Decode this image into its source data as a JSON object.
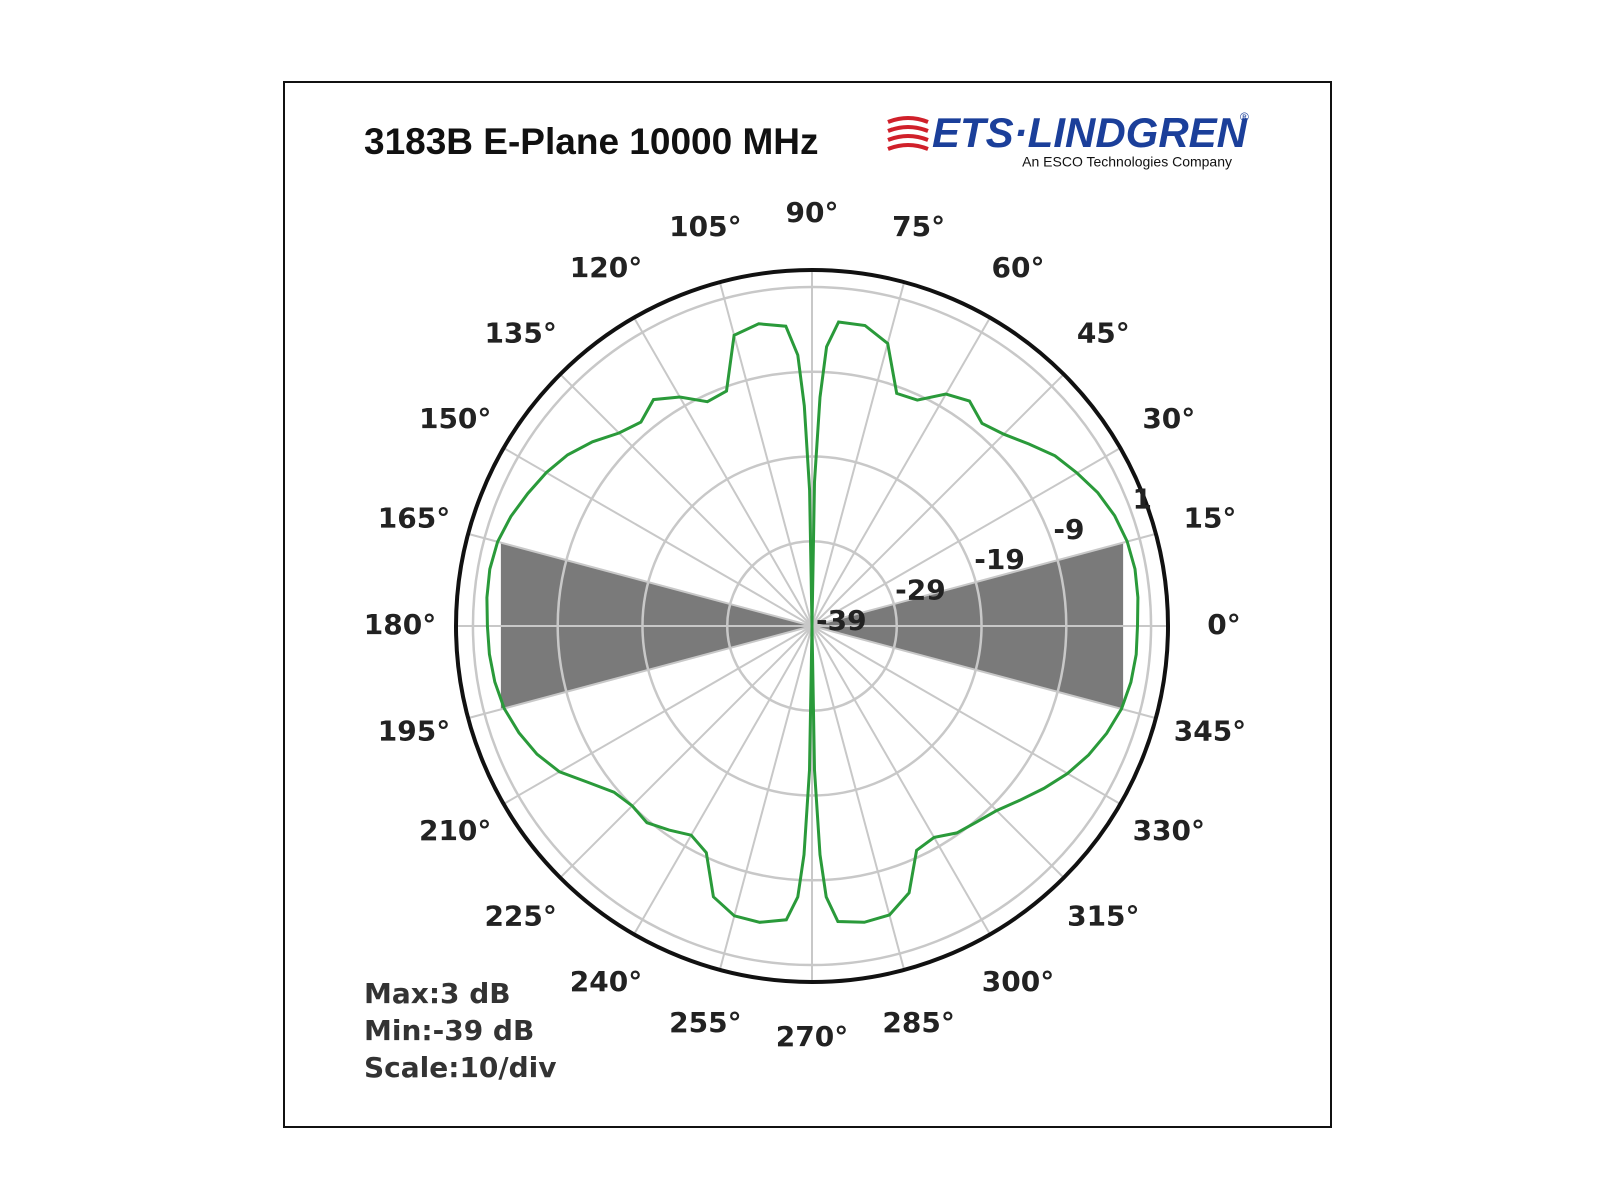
{
  "chart_data": {
    "type": "polar",
    "title": "3183B E-Plane 10000 MHz",
    "logo_text": "ETS·LINDGREN",
    "logo_registered": "®",
    "logo_tagline": "An ESCO Technologies Company",
    "annotations": [
      "Max:3 dB",
      "Min:-39 dB",
      "Scale:10/div"
    ],
    "rlim": [
      -39,
      3
    ],
    "rticks": [
      -39,
      -29,
      -19,
      -9,
      1
    ],
    "thetaticks": [
      {
        "value": 0,
        "label": "0°"
      },
      {
        "value": 15,
        "label": "15°"
      },
      {
        "value": 30,
        "label": "30°"
      },
      {
        "value": 45,
        "label": "45°"
      },
      {
        "value": 60,
        "label": "60°"
      },
      {
        "value": 75,
        "label": "75°"
      },
      {
        "value": 90,
        "label": "90°"
      },
      {
        "value": 105,
        "label": "105°"
      },
      {
        "value": 120,
        "label": "120°"
      },
      {
        "value": 135,
        "label": "135°"
      },
      {
        "value": 150,
        "label": "150°"
      },
      {
        "value": 165,
        "label": "165°"
      },
      {
        "value": 180,
        "label": "180°"
      },
      {
        "value": 195,
        "label": "195°"
      },
      {
        "value": 210,
        "label": "210°"
      },
      {
        "value": 225,
        "label": "225°"
      },
      {
        "value": 240,
        "label": "240°"
      },
      {
        "value": 255,
        "label": "255°"
      },
      {
        "value": 270,
        "label": "270°"
      },
      {
        "value": 285,
        "label": "285°"
      },
      {
        "value": 300,
        "label": "300°"
      },
      {
        "value": 315,
        "label": "315°"
      },
      {
        "value": 330,
        "label": "330°"
      },
      {
        "value": 345,
        "label": "345°"
      }
    ],
    "grid": true,
    "shaded_sectors": [
      {
        "from": -15,
        "to": 15,
        "r": -1,
        "color": "#7a7a7a"
      },
      {
        "from": 165,
        "to": 195,
        "r": -1,
        "color": "#7a7a7a"
      }
    ],
    "x": [
      0,
      5,
      10,
      15,
      20,
      25,
      30,
      35,
      40,
      45,
      50,
      55,
      60,
      65,
      70,
      75,
      80,
      85,
      87,
      88,
      89,
      90,
      91,
      92,
      93,
      95,
      100,
      105,
      110,
      115,
      120,
      125,
      130,
      135,
      140,
      145,
      150,
      155,
      160,
      165,
      170,
      175,
      180,
      185,
      190,
      195,
      200,
      205,
      210,
      215,
      220,
      225,
      230,
      235,
      240,
      245,
      250,
      255,
      260,
      265,
      267,
      268,
      269,
      270,
      271,
      272,
      273,
      275,
      280,
      285,
      290,
      295,
      300,
      305,
      310,
      315,
      320,
      325,
      330,
      335,
      340,
      345,
      350,
      355
    ],
    "series": [
      {
        "color": "#2a9a3a",
        "values": [
          -0.6,
          -0.4,
          -0.3,
          -0.5,
          -1.0,
          -1.8,
          -2.9,
          -4.0,
          -5.6,
          -7.0,
          -7.8,
          -6.6,
          -7.4,
          -9.6,
          -9.8,
          -4.5,
          -3.0,
          -3.0,
          -6,
          -12,
          -22,
          -39,
          -23,
          -13,
          -7,
          -3.5,
          -2.8,
          -3.5,
          -9.5,
          -9.8,
          -7.8,
          -6.4,
          -7.6,
          -6.8,
          -5.2,
          -3.8,
          -2.8,
          -2.0,
          -1.2,
          -0.6,
          -0.4,
          -0.5,
          -0.7,
          -0.8,
          -1.0,
          -1.4,
          -2.2,
          -3.2,
          -4.6,
          -6.8,
          -8.5,
          -9.0,
          -8.7,
          -9.6,
          -10.5,
          -9.5,
          -5.0,
          -3.6,
          -3.5,
          -4.2,
          -7,
          -12,
          -22,
          -39,
          -22,
          -12,
          -7,
          -4.0,
          -3.5,
          -3.7,
          -5.5,
          -9.8,
          -10.2,
          -9.2,
          -8.8,
          -8.2,
          -7.0,
          -5.6,
          -4.2,
          -3.0,
          -2.0,
          -1.2,
          -0.8,
          -0.6
        ]
      }
    ]
  }
}
